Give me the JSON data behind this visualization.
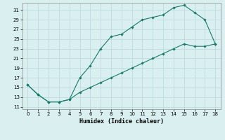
{
  "upper_x": [
    0,
    1,
    2,
    3,
    4,
    5,
    6,
    7,
    8,
    9,
    10,
    11,
    12,
    13,
    14,
    15,
    16,
    17,
    18
  ],
  "upper_y": [
    15.5,
    13.5,
    12.0,
    12.0,
    12.5,
    17.0,
    19.5,
    23.0,
    25.5,
    26.0,
    27.5,
    29.0,
    29.5,
    30.0,
    31.5,
    32.0,
    30.5,
    29.0,
    24.0
  ],
  "lower_x": [
    0,
    1,
    2,
    3,
    4,
    5,
    6,
    7,
    8,
    9,
    10,
    11,
    12,
    13,
    14,
    15,
    16,
    17,
    18
  ],
  "lower_y": [
    15.5,
    13.5,
    12.0,
    12.0,
    12.5,
    14.0,
    15.0,
    16.0,
    17.0,
    18.0,
    19.0,
    20.0,
    21.0,
    22.0,
    23.0,
    24.0,
    23.5,
    23.5,
    24.0
  ],
  "line_color": "#1a7a6a",
  "bg_color": "#d9eff0",
  "grid_color": "#b8d8da",
  "xlabel": "Humidex (Indice chaleur)",
  "yticks": [
    11,
    13,
    15,
    17,
    19,
    21,
    23,
    25,
    27,
    29,
    31
  ],
  "xticks": [
    0,
    1,
    2,
    3,
    4,
    5,
    6,
    7,
    8,
    9,
    10,
    11,
    12,
    13,
    14,
    15,
    16,
    17,
    18
  ],
  "xlim": [
    -0.5,
    18.5
  ],
  "ylim": [
    10.5,
    32.5
  ],
  "figwidth": 3.2,
  "figheight": 2.0,
  "dpi": 100
}
